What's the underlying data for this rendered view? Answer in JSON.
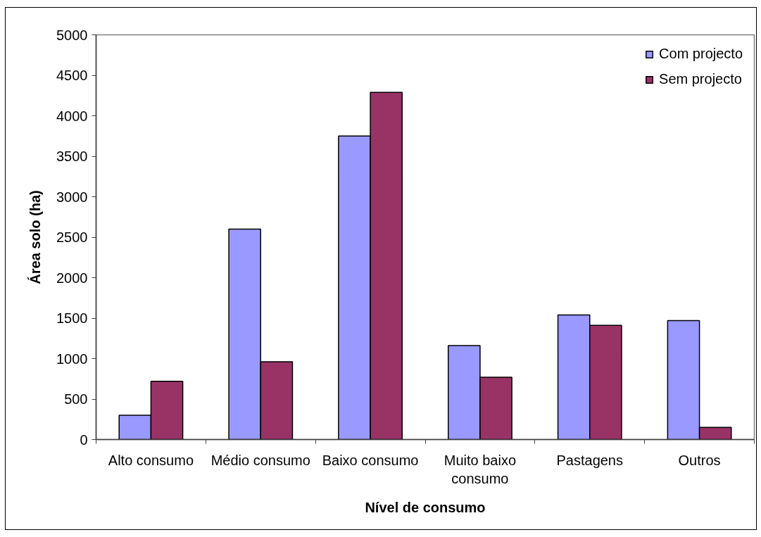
{
  "chart_data": {
    "type": "bar",
    "xlabel": "Nível de consumo",
    "ylabel": "Área solo (ha)",
    "categories": [
      "Alto consumo",
      "Médio consumo",
      "Baixo consumo",
      "Muito baixo consumo",
      "Pastagens",
      "Outros"
    ],
    "series": [
      {
        "name": "Com projecto",
        "color": "#9999ff",
        "values": [
          300,
          2600,
          3750,
          1160,
          1540,
          1470
        ]
      },
      {
        "name": "Sem projecto",
        "color": "#993366",
        "values": [
          720,
          960,
          4290,
          770,
          1410,
          150
        ]
      }
    ],
    "ylim": [
      0,
      5000
    ],
    "yticks": [
      0,
      500,
      1000,
      1500,
      2000,
      2500,
      3000,
      3500,
      4000,
      4500,
      5000
    ],
    "grid": false,
    "legend": "top right"
  }
}
